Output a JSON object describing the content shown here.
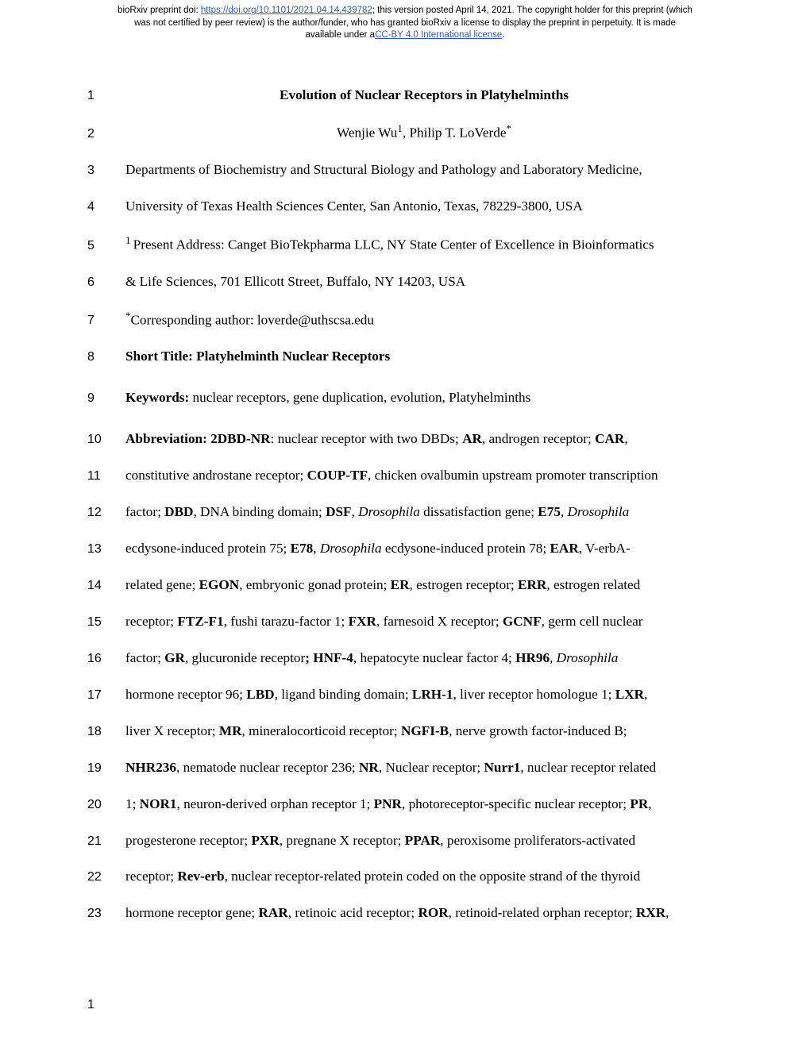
{
  "header": {
    "line1_pre": "bioRxiv preprint doi: ",
    "doi_url": "https://doi.org/10.1101/2021.04.14.439782",
    "line1_post": "; this version posted April 14, 2021. The copyright holder for this preprint (which",
    "line2": "was not certified by peer review) is the author/funder, who has granted bioRxiv a license to display the preprint in perpetuity. It is made",
    "line3_pre": "available under a",
    "license_text": "CC-BY 4.0 International license",
    "line3_post": "."
  },
  "lines": {
    "l1_num": "1",
    "l1_text": "Evolution of Nuclear Receptors in Platyhelminths",
    "l2_num": "2",
    "l2_pre": "Wenjie Wu",
    "l2_sup1": "1",
    "l2_mid": ", Philip T. LoVerde",
    "l2_sup2": "*",
    "l3_num": "3",
    "l3_text": "Departments of Biochemistry and Structural Biology and Pathology and Laboratory Medicine,",
    "l4_num": "4",
    "l4_text": "University of Texas Health Sciences Center, San Antonio, Texas, 78229-3800, USA",
    "l5_num": "5",
    "l5_sup": "1 ",
    "l5_text": "Present Address: Canget BioTekpharma LLC, NY State Center of Excellence in Bioinformatics",
    "l6_num": "6",
    "l6_text": "& Life Sciences, 701 Ellicott Street, Buffalo, NY 14203, USA",
    "l7_num": "7",
    "l7_sup": "*",
    "l7_text": "Corresponding author: loverde@uthscsa.edu",
    "l8_num": "8",
    "l8_text": "Short Title: Platyhelminth Nuclear Receptors",
    "l9_num": "9",
    "l9_bold": "Keywords:",
    "l9_text": " nuclear receptors, gene duplication, evolution, Platyhelminths",
    "l10_num": "10",
    "l11_num": "11",
    "l12_num": "12",
    "l13_num": "13",
    "l14_num": "14",
    "l15_num": "15",
    "l16_num": "16",
    "l17_num": "17",
    "l18_num": "18",
    "l19_num": "19",
    "l20_num": "20",
    "l21_num": "21",
    "l22_num": "22",
    "l23_num": "23"
  },
  "abbrev": {
    "p1": "Abbreviation: 2DBD-NR",
    "p2": ": nuclear receptor with two DBDs; ",
    "p3": "AR",
    "p4": ", androgen receptor; ",
    "p5": "CAR",
    "p6": ", ",
    "p7": "constitutive androstane receptor; ",
    "p8": "COUP-TF",
    "p9": ", chicken ovalbumin upstream promoter transcription ",
    "p10": "factor; ",
    "p11": "DBD",
    "p12": ", DNA binding domain; ",
    "p13": "DSF",
    "p14": ", ",
    "p15": "Drosophila",
    "p16": " dissatisfaction gene; ",
    "p17": "E75",
    "p18": ", ",
    "p19": "Drosophila",
    "p20": " ecdysone-induced protein 75; ",
    "p21": "E78",
    "p22": ", ",
    "p23": "Drosophila",
    "p24": " ecdysone-induced protein 78; ",
    "p25": "EAR",
    "p26": ", V-erbA-related gene; ",
    "p27": "EGON",
    "p28": ", embryonic gonad protein; ",
    "p29": "ER",
    "p30": ", estrogen receptor; ",
    "p31": "ERR",
    "p32": ", estrogen related receptor; ",
    "p33": "FTZ-F1",
    "p34": ", fushi tarazu-factor 1; ",
    "p35": "FXR",
    "p36": ", farnesoid X receptor; ",
    "p37": "GCNF",
    "p38": ", germ cell nuclear factor; ",
    "p39": "GR",
    "p40": ", glucuronide receptor",
    "p41": "; HNF-4",
    "p42": ", hepatocyte nuclear factor 4; ",
    "p43": "HR96",
    "p44": ", ",
    "p45": "Drosophila",
    "p46": " hormone receptor 96; ",
    "p47": "LBD",
    "p48": ", ligand binding domain; ",
    "p49": "LRH-1",
    "p50": ", liver receptor homologue 1; ",
    "p51": "LXR",
    "p52": ", liver X receptor; ",
    "p53": "MR",
    "p54": ", mineralocorticoid receptor; ",
    "p55": "NGFI-B",
    "p56": ", nerve growth factor-induced B; ",
    "p57": "NHR236",
    "p58": ", nematode nuclear receptor 236; ",
    "p59": "NR",
    "p60": ", Nuclear receptor; ",
    "p61": "Nurr1",
    "p62": ", nuclear receptor related 1; ",
    "p63": "NOR1",
    "p64": ", neuron-derived orphan receptor 1; ",
    "p65": "PNR",
    "p66": ", photoreceptor-specific nuclear receptor; ",
    "p67": "PR",
    "p68": ", progesterone receptor; ",
    "p69": "PXR",
    "p70": ", pregnane X receptor; ",
    "p71": "PPAR",
    "p72": ", peroxisome proliferators-activated receptor; ",
    "p73": "Rev-erb",
    "p74": ", nuclear receptor-related protein coded on the opposite strand of the thyroid hormone receptor gene; ",
    "p75": "RAR",
    "p76": ", retinoic acid receptor; ",
    "p77": "ROR",
    "p78": ", retinoid-related orphan receptor; ",
    "p79": "RXR",
    "p80": ","
  },
  "page_num": "1",
  "colors": {
    "link": "#2a5db0",
    "text": "#000000",
    "bg": "#ffffff"
  }
}
